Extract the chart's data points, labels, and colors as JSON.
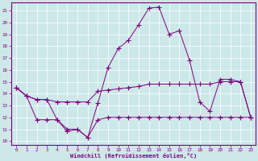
{
  "xlabel": "Windchill (Refroidissement éolien,°C)",
  "x": [
    0,
    1,
    2,
    3,
    4,
    5,
    6,
    7,
    8,
    9,
    10,
    11,
    12,
    13,
    14,
    15,
    16,
    17,
    18,
    19,
    20,
    21,
    22,
    23
  ],
  "line1": [
    14.5,
    13.8,
    13.5,
    13.5,
    11.8,
    10.8,
    11.0,
    10.3,
    13.2,
    16.2,
    17.8,
    18.5,
    19.8,
    21.2,
    21.3,
    19.0,
    19.3,
    16.8,
    13.3,
    12.5,
    15.2,
    15.2,
    15.0,
    12.0
  ],
  "line2": [
    14.5,
    13.8,
    13.5,
    13.5,
    13.3,
    13.3,
    13.3,
    13.3,
    14.2,
    14.3,
    14.4,
    14.5,
    14.6,
    14.8,
    14.8,
    14.8,
    14.8,
    14.8,
    14.8,
    14.8,
    15.0,
    15.0,
    15.0,
    12.0
  ],
  "line3": [
    14.5,
    13.8,
    11.8,
    11.8,
    11.8,
    11.0,
    11.0,
    10.3,
    11.8,
    12.0,
    12.0,
    12.0,
    12.0,
    12.0,
    12.0,
    12.0,
    12.0,
    12.0,
    12.0,
    12.0,
    12.0,
    12.0,
    12.0,
    12.0
  ],
  "bg_color": "#cce8e8",
  "grid_color": "#aad4d4",
  "line_color": "#800080",
  "ylim_min": 10,
  "ylim_max": 21,
  "yticks": [
    10,
    11,
    12,
    13,
    14,
    15,
    16,
    17,
    18,
    19,
    20,
    21
  ],
  "xticks": [
    0,
    1,
    2,
    3,
    4,
    5,
    6,
    7,
    8,
    9,
    10,
    11,
    12,
    13,
    14,
    15,
    16,
    17,
    18,
    19,
    20,
    21,
    22,
    23
  ]
}
